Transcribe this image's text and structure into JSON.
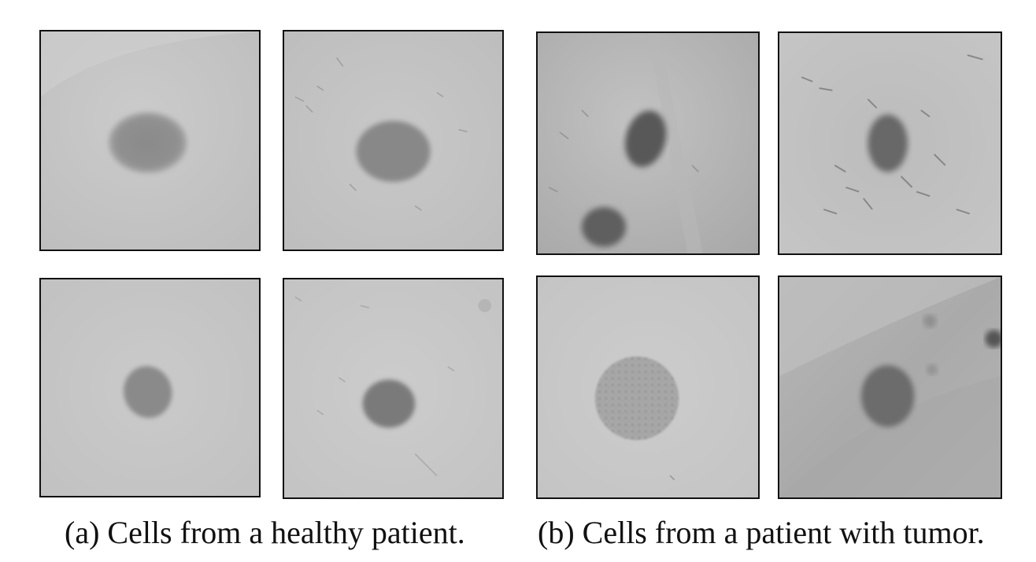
{
  "figure": {
    "captions": {
      "a": "(a) Cells from a healthy patient.",
      "b": "(b) Cells from a patient with tumor."
    }
  }
}
